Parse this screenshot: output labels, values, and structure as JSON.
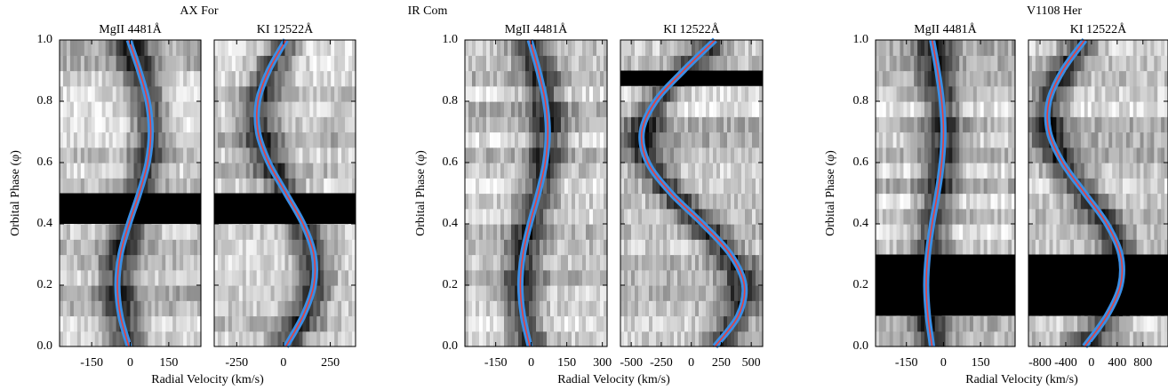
{
  "chart_data": [
    {
      "type": "line",
      "title": "AX For",
      "ylabel": "Orbital Phase (φ)",
      "xlabel": "Radial Velocity (km/s)",
      "ylim": [
        0,
        1
      ],
      "yticks": [
        {
          "value": 0,
          "label": "0.0"
        },
        {
          "value": 0.2,
          "label": "0.2"
        },
        {
          "value": 0.4,
          "label": "0.4"
        },
        {
          "value": 0.6,
          "label": "0.6"
        },
        {
          "value": 0.8,
          "label": "0.8"
        },
        {
          "value": 1,
          "label": "1.0"
        }
      ],
      "panels": [
        {
          "subtitle": "MgII 4481Å",
          "xlim": [
            -275,
            275
          ],
          "xticks": [
            -150,
            0,
            150
          ],
          "gaps": [
            [
              0.4,
              0.5
            ]
          ],
          "series": [
            {
              "color": "#e5403d",
              "outline": "#3a8fe6",
              "y": [
                0,
                0.1,
                0.2,
                0.3,
                0.4,
                0.5,
                0.6,
                0.7,
                0.8,
                0.9,
                1
              ],
              "values": [
                -5,
                -38,
                -50,
                -38,
                -5,
                35,
                68,
                80,
                68,
                35,
                -5
              ]
            }
          ]
        },
        {
          "subtitle": "KI 12522Å",
          "xlim": [
            -370,
            385
          ],
          "xticks": [
            -250,
            0,
            250
          ],
          "gaps": [
            [
              0.4,
              0.5
            ]
          ],
          "series": [
            {
              "color": "#e5403d",
              "outline": "#3a8fe6",
              "y": [
                0,
                0.1,
                0.2,
                0.3,
                0.4,
                0.5,
                0.6,
                0.7,
                0.8,
                0.9,
                1
              ],
              "values": [
                13,
                105,
                162,
                162,
                105,
                13,
                -79,
                -136,
                -136,
                -79,
                13
              ]
            }
          ]
        }
      ]
    },
    {
      "type": "line",
      "title": "IR Com",
      "ylabel": "Orbital Phase (φ)",
      "xlabel": "Radial Velocity (km/s)",
      "ylim": [
        0,
        1
      ],
      "yticks": [
        {
          "value": 0,
          "label": "0.0"
        },
        {
          "value": 0.2,
          "label": "0.2"
        },
        {
          "value": 0.4,
          "label": "0.4"
        },
        {
          "value": 0.6,
          "label": "0.6"
        },
        {
          "value": 0.8,
          "label": "0.8"
        },
        {
          "value": 1,
          "label": "1.0"
        }
      ],
      "panels": [
        {
          "subtitle": "MgII 4481Å",
          "xlim": [
            -280,
            320
          ],
          "xticks": [
            -150,
            0,
            150,
            300
          ],
          "gaps": [],
          "series": [
            {
              "color": "#e5403d",
              "outline": "#3a8fe6",
              "y": [
                0,
                0.1,
                0.2,
                0.3,
                0.4,
                0.5,
                0.6,
                0.7,
                0.8,
                0.9,
                1
              ],
              "values": [
                -6,
                -35,
                -46,
                -35,
                -6,
                30,
                59,
                70,
                59,
                30,
                -6
              ]
            }
          ]
        },
        {
          "subtitle": "KI 12522Å",
          "xlim": [
            -590,
            595
          ],
          "xticks": [
            -500,
            -250,
            0,
            250,
            500
          ],
          "gaps": [
            [
              0.85,
              0.9
            ]
          ],
          "series": [
            {
              "color": "#e5403d",
              "outline": "#3a8fe6",
              "y": [
                0,
                0.1,
                0.2,
                0.3,
                0.4,
                0.5,
                0.6,
                0.7,
                0.8,
                0.9,
                1
              ],
              "values": [
                198,
                392,
                442,
                328,
                95,
                -168,
                -362,
                -412,
                -298,
                -65,
                198
              ]
            }
          ]
        }
      ]
    },
    {
      "type": "line",
      "title": "V1108 Her",
      "ylabel": "Orbital Phase (φ)",
      "xlabel": "Radial Velocity (km/s)",
      "ylim": [
        0,
        1
      ],
      "yticks": [
        {
          "value": 0,
          "label": "0.0"
        },
        {
          "value": 0.2,
          "label": "0.2"
        },
        {
          "value": 0.4,
          "label": "0.4"
        },
        {
          "value": 0.6,
          "label": "0.6"
        },
        {
          "value": 0.8,
          "label": "0.8"
        },
        {
          "value": 1,
          "label": "1.0"
        }
      ],
      "panels": [
        {
          "subtitle": "MgII 4481Å",
          "xlim": [
            -275,
            290
          ],
          "xticks": [
            -150,
            0,
            150
          ],
          "gaps": [
            [
              0.1,
              0.3
            ]
          ],
          "series": [
            {
              "color": "#e5403d",
              "outline": "#3a8fe6",
              "y": [
                0,
                0.1,
                0.2,
                0.3,
                0.4,
                0.5,
                0.6,
                0.7,
                0.8,
                0.9,
                1
              ],
              "values": [
                -46,
                -63,
                -70,
                -63,
                -46,
                -24,
                -7,
                0,
                -7,
                -24,
                -46
              ]
            }
          ]
        },
        {
          "subtitle": "KI 12522Å",
          "xlim": [
            -980,
            1190
          ],
          "xticks": [
            -800,
            -400,
            0,
            400,
            800
          ],
          "gaps": [
            [
              0.1,
              0.3
            ]
          ],
          "series": [
            {
              "color": "#e5403d",
              "outline": "#3a8fe6",
              "y": [
                0,
                0.1,
                0.2,
                0.3,
                0.4,
                0.5,
                0.6,
                0.7,
                0.8,
                0.9,
                1
              ],
              "values": [
                -105,
                239,
                451,
                451,
                239,
                -105,
                -449,
                -661,
                -661,
                -449,
                -105
              ]
            }
          ]
        }
      ]
    }
  ]
}
